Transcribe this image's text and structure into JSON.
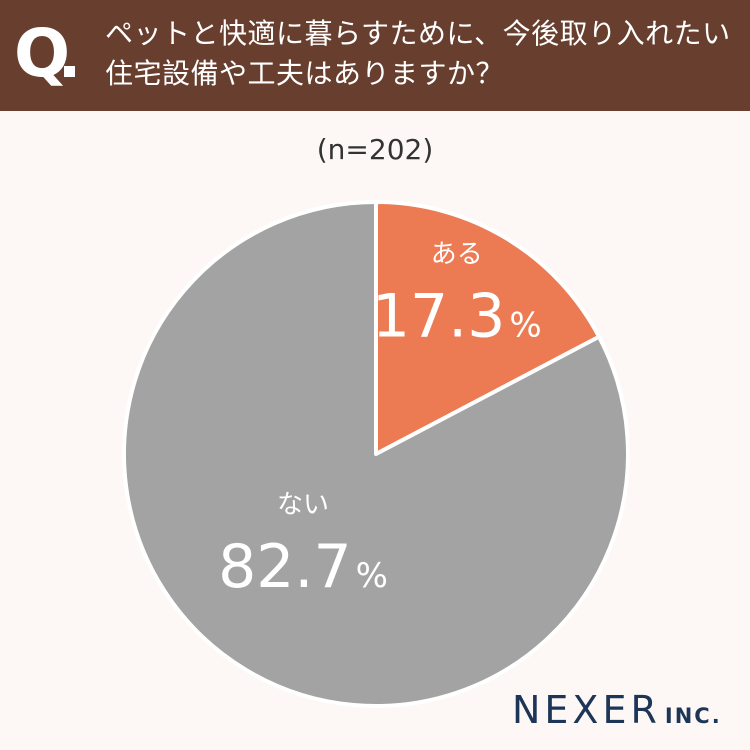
{
  "header": {
    "q_label": "Q",
    "question_line1": "ペットと快適に暮らすために、今後取り入れたい",
    "question_line2": "住宅設備や工夫はありますか？"
  },
  "logo": {
    "name": "NEXER",
    "suffix": "INC."
  },
  "colors": {
    "header_bg": "#683f2e",
    "aru": "#ec7b53",
    "nai": "#a3a3a3",
    "logo": "#1d3557"
  },
  "chart_data": {
    "type": "pie",
    "sample_size": "(n=202)",
    "start": "12 o'clock",
    "direction": "clockwise",
    "slices": [
      {
        "label": "ある",
        "value": 17.3,
        "value_text": "17.3",
        "unit": "%",
        "color": "#ec7b53"
      },
      {
        "label": "ない",
        "value": 82.7,
        "value_text": "82.7",
        "unit": "%",
        "color": "#a3a3a3"
      }
    ]
  }
}
